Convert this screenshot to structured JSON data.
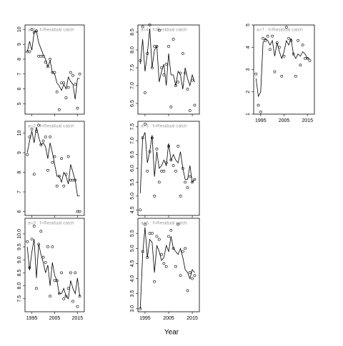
{
  "x_label": "Year",
  "chart_data": [
    {
      "type": "line",
      "title": "a=1 : f=Residual catch",
      "x": [
        1993,
        1994,
        1995,
        1996,
        1997,
        1998,
        1999,
        2000,
        2001,
        2002,
        2003,
        2004,
        2005,
        2006,
        2007,
        2008,
        2009,
        2010,
        2011,
        2012,
        2013,
        2014,
        2015,
        2016
      ],
      "series": [
        {
          "color": "#000000",
          "values": [
            8.5,
            9.2,
            8.6,
            9.8,
            9.9,
            9.1,
            8.7,
            8.3,
            8.0,
            7.5,
            7.9,
            7.1,
            7.0,
            6.4,
            6.2,
            5.9,
            6.3,
            6.0,
            6.8,
            6.5,
            6.3,
            5.3,
            6.7,
            6.7
          ]
        },
        {
          "color": "#000000",
          "marker": "circle",
          "values": [
            8.5,
            8.5,
            10.0,
            9.8,
            9.9,
            8.2,
            8.2,
            8.2,
            7.8,
            7.5,
            8.0,
            7.1,
            7.1,
            5.8,
            4.6,
            6.4,
            6.4,
            5.4,
            6.1,
            7.1,
            6.9,
            6.3,
            4.7,
            7.0
          ]
        }
      ],
      "xlim": [
        1992,
        2018
      ],
      "xticks": [
        1995,
        2005,
        2015
      ],
      "ylim": [
        4.3,
        10.3
      ],
      "yticks": [
        5,
        6,
        7,
        8,
        9,
        10
      ]
    },
    {
      "type": "line",
      "title": "a=2 : f=Residual catch",
      "x": [
        1993,
        1994,
        1995,
        1996,
        1997,
        1998,
        1999,
        2000,
        2001,
        2002,
        2003,
        2004,
        2005,
        2006,
        2007,
        2008,
        2009,
        2010,
        2011,
        2012,
        2013,
        2014,
        2015,
        2016
      ],
      "series": [
        {
          "color": "#000000",
          "values": [
            9.0,
            9.6,
            10.1,
            9.5,
            10.3,
            9.8,
            9.4,
            9.5,
            9.3,
            8.7,
            9.5,
            9.0,
            8.4,
            7.8,
            7.8,
            7.5,
            8.0,
            7.8,
            7.4,
            8.4,
            8.0,
            7.6,
            6.8,
            6.8
          ]
        },
        {
          "color": "#000000",
          "marker": "circle",
          "values": [
            8.9,
            9.8,
            10.2,
            7.9,
            10.1,
            10.4,
            9.4,
            9.6,
            9.8,
            8.1,
            9.8,
            8.5,
            8.8,
            7.3,
            7.8,
            8.7,
            7.3,
            7.9,
            8.8,
            7.6,
            7.6,
            7.6,
            6.0,
            6.0
          ]
        }
      ],
      "xlim": [
        1992,
        2018
      ],
      "xticks": [
        1995,
        2005,
        2015
      ],
      "ylim": [
        5.8,
        10.6
      ],
      "yticks": [
        6,
        7,
        8,
        9,
        10
      ]
    },
    {
      "type": "line",
      "title": "a=3 : f=Residual catch",
      "x": [
        1993,
        1994,
        1995,
        1996,
        1997,
        1998,
        1999,
        2000,
        2001,
        2002,
        2003,
        2004,
        2005,
        2006,
        2007,
        2008,
        2009,
        2010,
        2011,
        2012,
        2013,
        2014,
        2015,
        2016
      ],
      "series": [
        {
          "color": "#000000",
          "values": [
            9.5,
            8.6,
            9.3,
            9.8,
            8.3,
            9.6,
            9.2,
            8.9,
            8.5,
            8.8,
            8.0,
            8.9,
            8.4,
            8.2,
            7.7,
            7.7,
            7.9,
            7.6,
            7.5,
            8.2,
            7.9,
            7.7,
            8.3,
            7.6
          ]
        },
        {
          "color": "#000000",
          "marker": "circle",
          "values": [
            9.7,
            8.7,
            9.8,
            10.3,
            7.9,
            9.6,
            10.1,
            9.1,
            8.9,
            9.5,
            7.6,
            9.5,
            8.2,
            8.2,
            7.7,
            8.5,
            7.5,
            7.6,
            7.9,
            8.5,
            7.4,
            8.5,
            7.2,
            7.6
          ]
        }
      ],
      "xlim": [
        1992,
        2018
      ],
      "xticks": [
        1995,
        2005,
        2015
      ],
      "ylim": [
        7.0,
        10.6
      ],
      "yticks": [
        7.5,
        {
          "value": 8,
          "label": "8.0"
        },
        8.5,
        {
          "value": 9,
          "label": "9.0"
        },
        9.5,
        {
          "value": 10,
          "label": "10.0"
        }
      ]
    },
    {
      "type": "line",
      "title": "a=4 : f=Residual catch",
      "x": [
        1993,
        1994,
        1995,
        1996,
        1997,
        1998,
        1999,
        2000,
        2001,
        2002,
        2003,
        2004,
        2005,
        2006,
        2007,
        2008,
        2009,
        2010,
        2011,
        2012,
        2013,
        2014,
        2015,
        2016
      ],
      "series": [
        {
          "color": "#000000",
          "values": [
            7.6,
            8.3,
            7.4,
            7.9,
            8.6,
            7.5,
            8.0,
            8.1,
            7.1,
            7.4,
            7.6,
            7.0,
            7.9,
            7.3,
            7.3,
            7.0,
            7.4,
            7.3,
            6.9,
            7.5,
            7.2,
            7.0,
            7.3,
            7.1
          ]
        },
        {
          "color": "#000000",
          "marker": "circle",
          "values": [
            7.7,
            8.65,
            6.8,
            7.9,
            8.7,
            7.5,
            8.1,
            8.1,
            8.55,
            7.5,
            7.3,
            7.6,
            8.1,
            6.4,
            8.3,
            7.0,
            7.1,
            7.35,
            7.9,
            7.35,
            6.9,
            6.3,
            7.15,
            6.45
          ]
        }
      ],
      "xlim": [
        1992,
        2018
      ],
      "xticks": [
        1995,
        2005,
        2015
      ],
      "ylim": [
        6.2,
        8.7
      ],
      "yticks": [
        6.5,
        {
          "value": 7,
          "label": "7.0"
        },
        7.5,
        {
          "value": 8,
          "label": "8.0"
        },
        8.5
      ]
    },
    {
      "type": "line",
      "title": "a=5 : f=Residual catch",
      "x": [
        1993,
        1994,
        1995,
        1996,
        1997,
        1998,
        1999,
        2000,
        2001,
        2002,
        2003,
        2004,
        2005,
        2006,
        2007,
        2008,
        2009,
        2010,
        2011,
        2012,
        2013,
        2014,
        2015,
        2016
      ],
      "series": [
        {
          "color": "#000000",
          "values": [
            5.1,
            7.1,
            7.3,
            6.2,
            6.6,
            7.2,
            5.7,
            6.6,
            6.0,
            6.1,
            6.3,
            6.1,
            6.9,
            6.3,
            6.5,
            6.3,
            6.2,
            6.6,
            6.0,
            5.6,
            5.6,
            6.1,
            5.5,
            5.6
          ]
        },
        {
          "color": "#000000",
          "marker": "circle",
          "values": [
            4.5,
            7.1,
            7.6,
            5.9,
            6.6,
            7.1,
            5.0,
            6.7,
            5.5,
            5.9,
            5.9,
            6.2,
            6.8,
            6.3,
            6.1,
            5.9,
            6.8,
            5.0,
            6.0,
            5.5,
            5.3,
            5.7,
            5.5,
            5.6
          ]
        }
      ],
      "xlim": [
        1992,
        2018
      ],
      "xticks": [
        1995,
        2005,
        2015
      ],
      "ylim": [
        4.3,
        7.7
      ],
      "yticks": [
        4.5,
        {
          "value": 5,
          "label": "5.0"
        },
        5.5,
        {
          "value": 6,
          "label": "6.0"
        },
        6.5,
        {
          "value": 7,
          "label": "7.0"
        },
        7.5
      ]
    },
    {
      "type": "line",
      "title": "a=6 : f=Residual catch",
      "x": [
        1993,
        1994,
        1995,
        1996,
        1997,
        1998,
        1999,
        2000,
        2001,
        2002,
        2003,
        2004,
        2005,
        2006,
        2007,
        2008,
        2009,
        2010,
        2011,
        2012,
        2013,
        2014,
        2015,
        2016
      ],
      "series": [
        {
          "color": "#000000",
          "values": [
            3.0,
            4.8,
            5.7,
            4.7,
            5.3,
            5.2,
            4.2,
            5.1,
            4.9,
            4.6,
            4.7,
            5.1,
            4.9,
            5.4,
            5.0,
            4.9,
            4.8,
            5.0,
            4.7,
            4.3,
            4.2,
            4.0,
            4.3,
            4.2
          ]
        },
        {
          "color": "#000000",
          "marker": "circle",
          "values": [
            3.0,
            4.9,
            5.8,
            4.7,
            5.5,
            5.5,
            3.9,
            5.4,
            5.3,
            4.8,
            4.5,
            4.4,
            5.4,
            5.6,
            5.0,
            4.4,
            5.8,
            4.1,
            4.9,
            5.0,
            3.6,
            4.2,
            4.0,
            4.1
          ]
        }
      ],
      "xlim": [
        1992,
        2018
      ],
      "xticks": [
        1995,
        2005,
        2015
      ],
      "ylim": [
        2.9,
        6.0
      ],
      "yticks": [
        {
          "value": 3,
          "label": "3.0"
        },
        3.5,
        {
          "value": 4,
          "label": "4.0"
        },
        4.5,
        {
          "value": 5,
          "label": "5.0"
        },
        5.5
      ]
    },
    {
      "type": "line",
      "title": "a=7 : f=Residual catch",
      "x": [
        1993,
        1994,
        1995,
        1996,
        1997,
        1998,
        1999,
        2000,
        2001,
        2002,
        2003,
        2004,
        2005,
        2006,
        2007,
        2008,
        2009,
        2010,
        2011,
        2012,
        2013,
        2014,
        2015,
        2016
      ],
      "series": [
        {
          "color": "#000000",
          "values": [
            2.6,
            1.8,
            2.0,
            4.2,
            4.4,
            4.3,
            4.1,
            4.3,
            3.6,
            4.2,
            3.8,
            3.5,
            3.8,
            4.3,
            4.1,
            4.4,
            3.7,
            3.5,
            3.7,
            3.6,
            3.8,
            3.7,
            3.5,
            3.5
          ]
        },
        {
          "color": "#000000",
          "marker": "circle",
          "values": [
            2.8,
            1.4,
            1.1,
            4.4,
            4.3,
            4.5,
            3.9,
            4.5,
            2.9,
            4.2,
            4.0,
            2.7,
            3.6,
            4.9,
            4.4,
            4.3,
            3.7,
            2.7,
            4.3,
            3.2,
            4.1,
            3.5,
            3.5,
            3.4
          ]
        }
      ],
      "xlim": [
        1992,
        2018
      ],
      "xticks": [
        1995,
        2005,
        2015
      ],
      "ylim": [
        1.0,
        5.0
      ],
      "yticks": [
        1,
        2,
        3,
        4,
        5
      ]
    }
  ]
}
